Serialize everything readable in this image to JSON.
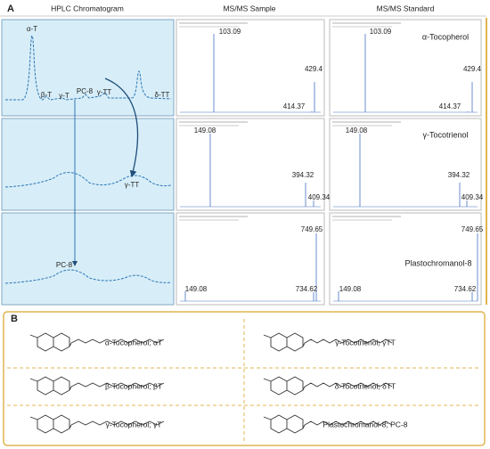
{
  "panel_a": {
    "label": "A",
    "headers": [
      "HPLC Chromatogram",
      "MS/MS Sample",
      "MS/MS Standard"
    ],
    "rows": [
      {
        "chromatogram_peaks": [
          "α-T",
          "β-T",
          "γ-T",
          "PC-8",
          "γ-TT",
          "δ-TT"
        ],
        "sample_peaks": [
          "103.09",
          "429.4",
          "414.37"
        ],
        "standard_name": "α-Tocopherol",
        "standard_peaks": [
          "103.09",
          "429.4",
          "414.37"
        ]
      },
      {
        "chromatogram_peaks": [
          "γ-TT"
        ],
        "sample_peaks": [
          "149.08",
          "394.32",
          "409.34"
        ],
        "standard_name": "γ-Tocotrienol",
        "standard_peaks": [
          "149.08",
          "394.32",
          "409.34"
        ]
      },
      {
        "chromatogram_peaks": [
          "PC-8"
        ],
        "sample_peaks": [
          "749.65",
          "149.08",
          "734.62"
        ],
        "standard_name": "Plastochromanol-8",
        "standard_peaks": [
          "749.65",
          "149.08",
          "734.62"
        ]
      }
    ]
  },
  "panel_b": {
    "label": "B",
    "compounds": [
      [
        "α-Tocopherol; αT",
        "β-Tocopherol; βT",
        "γ-Tocopherol; γT"
      ],
      [
        "γ-Tocotrienol; γTT",
        "δ-Tocotrienol; δTT",
        "Plastochromanol-8; PC-8"
      ]
    ]
  }
}
